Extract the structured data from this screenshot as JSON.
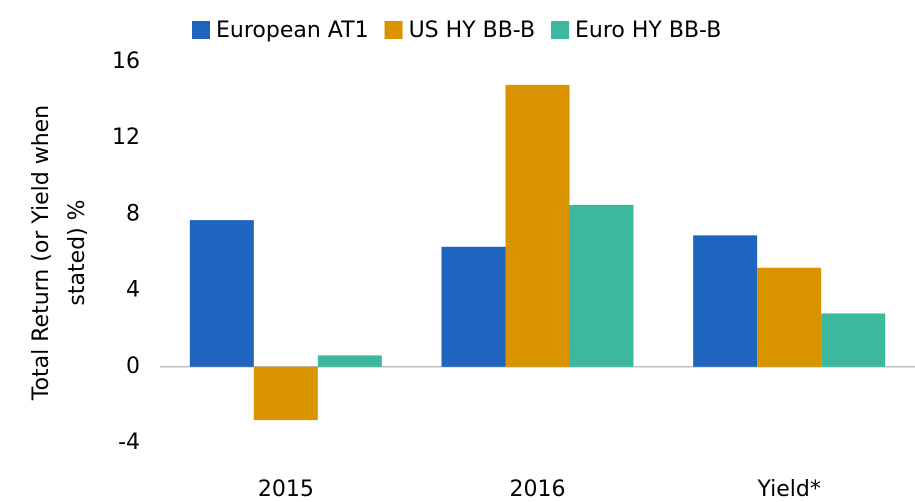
{
  "chart_data": {
    "type": "bar",
    "ylabel": [
      "Total  Return (or Yield when",
      "stated) %"
    ],
    "categories": [
      "2015",
      "2016",
      "Yield*"
    ],
    "series": [
      {
        "name": "European AT1",
        "color": "#1f64be",
        "values": [
          7.7,
          6.3,
          6.9
        ]
      },
      {
        "name": "US HY BB-B",
        "color": "#d99400",
        "values": [
          -2.8,
          14.8,
          5.2
        ]
      },
      {
        "name": "Euro HY BB-B",
        "color": "#3bb89e",
        "values": [
          0.6,
          8.5,
          2.8
        ]
      }
    ],
    "ylim": [
      -4,
      16
    ],
    "yticks": [
      -4,
      0,
      4,
      8,
      12,
      16
    ],
    "legend": "top"
  }
}
